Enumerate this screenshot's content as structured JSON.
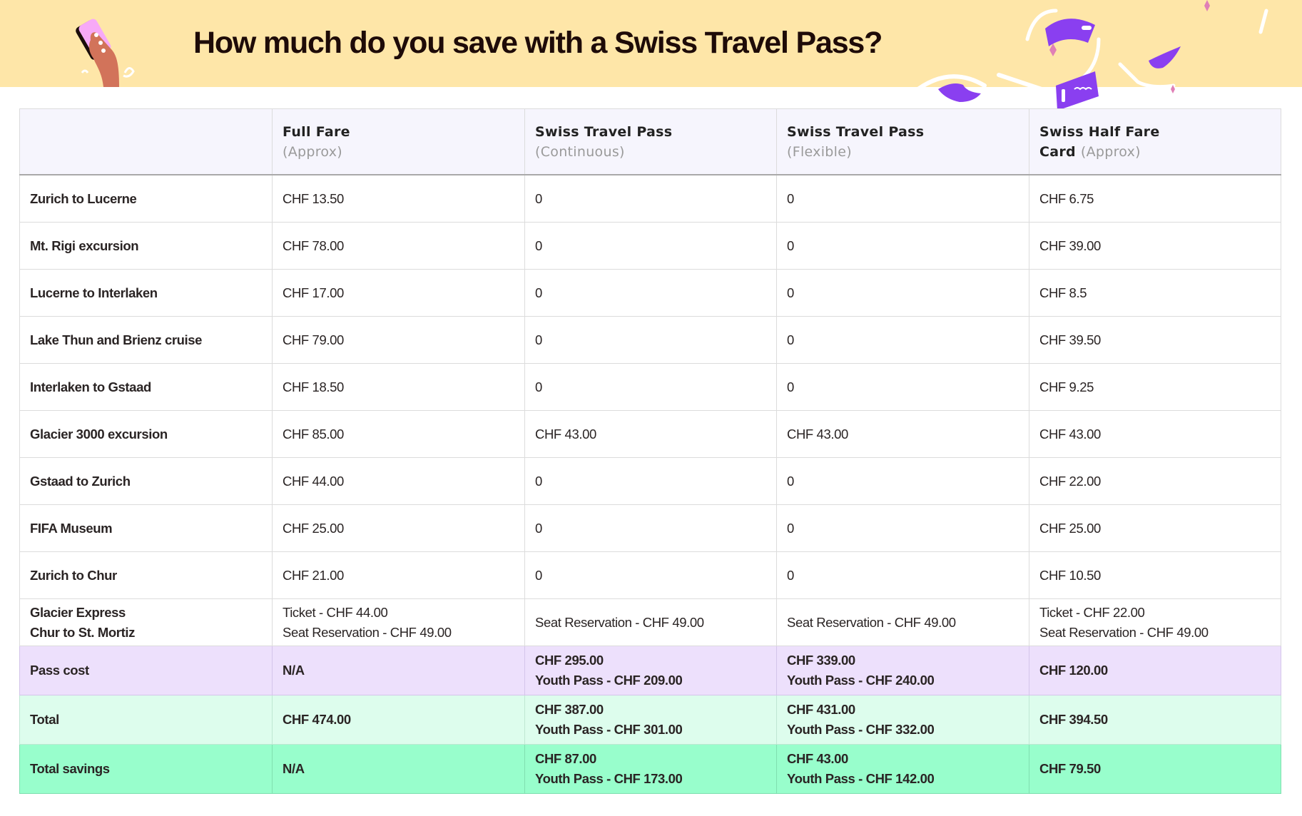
{
  "header": {
    "title": "How much do you save with a Swiss Travel Pass?",
    "background_color": "#fee6a8",
    "illustrations": [
      "hand-holding-phone-illustration",
      "flying-ticket-illustration"
    ]
  },
  "table": {
    "columns": [
      {
        "title": "",
        "subtitle": ""
      },
      {
        "title": "Full Fare",
        "subtitle": "(Approx)"
      },
      {
        "title": "Swiss Travel Pass",
        "subtitle": "(Continuous)"
      },
      {
        "title": "Swiss Travel Pass",
        "subtitle": "(Flexible)"
      },
      {
        "title": "Swiss Half Fare Card",
        "title_line1": "Swiss Half Fare",
        "title_line2": "Card",
        "subtitle": "(Approx)"
      }
    ],
    "rows": [
      {
        "label": [
          "Zurich to Lucerne"
        ],
        "full_fare": [
          "CHF 13.50"
        ],
        "stp_continuous": [
          "0"
        ],
        "stp_flexible": [
          "0"
        ],
        "half_fare": [
          "CHF 6.75"
        ]
      },
      {
        "label": [
          "Mt. Rigi excursion"
        ],
        "full_fare": [
          "CHF 78.00"
        ],
        "stp_continuous": [
          "0"
        ],
        "stp_flexible": [
          "0"
        ],
        "half_fare": [
          "CHF 39.00"
        ]
      },
      {
        "label": [
          "Lucerne to Interlaken"
        ],
        "full_fare": [
          "CHF 17.00"
        ],
        "stp_continuous": [
          "0"
        ],
        "stp_flexible": [
          "0"
        ],
        "half_fare": [
          "CHF 8.5"
        ]
      },
      {
        "label": [
          "Lake Thun and Brienz cruise"
        ],
        "full_fare": [
          "CHF 79.00"
        ],
        "stp_continuous": [
          "0"
        ],
        "stp_flexible": [
          "0"
        ],
        "half_fare": [
          "CHF 39.50"
        ]
      },
      {
        "label": [
          "Interlaken to Gstaad"
        ],
        "full_fare": [
          "CHF 18.50"
        ],
        "stp_continuous": [
          "0"
        ],
        "stp_flexible": [
          "0"
        ],
        "half_fare": [
          "CHF 9.25"
        ]
      },
      {
        "label": [
          "Glacier 3000 excursion"
        ],
        "full_fare": [
          "CHF 85.00"
        ],
        "stp_continuous": [
          "CHF 43.00"
        ],
        "stp_flexible": [
          "CHF 43.00"
        ],
        "half_fare": [
          "CHF 43.00"
        ]
      },
      {
        "label": [
          "Gstaad to Zurich"
        ],
        "full_fare": [
          "CHF 44.00"
        ],
        "stp_continuous": [
          "0"
        ],
        "stp_flexible": [
          "0"
        ],
        "half_fare": [
          "CHF 22.00"
        ]
      },
      {
        "label": [
          "FIFA Museum"
        ],
        "full_fare": [
          "CHF 25.00"
        ],
        "stp_continuous": [
          "0"
        ],
        "stp_flexible": [
          "0"
        ],
        "half_fare": [
          "CHF 25.00"
        ]
      },
      {
        "label": [
          "Zurich to Chur"
        ],
        "full_fare": [
          "CHF 21.00"
        ],
        "stp_continuous": [
          "0"
        ],
        "stp_flexible": [
          "0"
        ],
        "half_fare": [
          "CHF 10.50"
        ]
      },
      {
        "label": [
          "Glacier Express",
          "Chur to St. Mortiz"
        ],
        "full_fare": [
          "Ticket - CHF 44.00",
          "Seat Reservation - CHF 49.00"
        ],
        "stp_continuous": [
          "Seat Reservation - CHF 49.00"
        ],
        "stp_flexible": [
          "Seat Reservation - CHF 49.00"
        ],
        "half_fare": [
          "Ticket - CHF 22.00",
          "Seat Reservation - CHF 49.00"
        ]
      }
    ],
    "summary": {
      "pass_cost": {
        "label": "Pass cost",
        "color": "#ede0fc",
        "full_fare": [
          "N/A"
        ],
        "stp_continuous": [
          "CHF 295.00",
          "Youth Pass - CHF 209.00"
        ],
        "stp_flexible": [
          "CHF 339.00",
          "Youth Pass - CHF 240.00"
        ],
        "half_fare": [
          "CHF 120.00"
        ]
      },
      "total": {
        "label": "Total",
        "color": "#ddfded",
        "full_fare": [
          "CHF 474.00"
        ],
        "stp_continuous": [
          "CHF 387.00",
          "Youth Pass - CHF 301.00"
        ],
        "stp_flexible": [
          "CHF 431.00",
          "Youth Pass - CHF 332.00"
        ],
        "half_fare": [
          "CHF 394.50"
        ]
      },
      "savings": {
        "label": "Total savings",
        "color": "#98fecc",
        "full_fare": [
          "N/A"
        ],
        "stp_continuous": [
          "CHF 87.00",
          "Youth Pass - CHF 173.00"
        ],
        "stp_flexible": [
          "CHF 43.00",
          "Youth Pass - CHF 142.00"
        ],
        "half_fare": [
          "CHF 79.50"
        ]
      }
    }
  }
}
